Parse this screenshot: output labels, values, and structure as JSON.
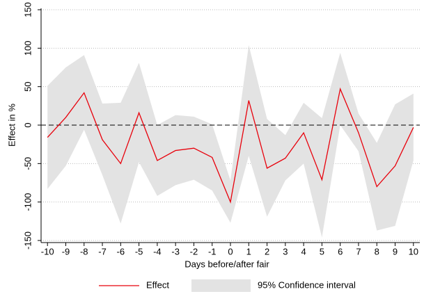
{
  "chart_data": {
    "type": "line",
    "xlabel": "Days before/after fair",
    "ylabel": "Effect in %",
    "x": [
      -10,
      -9,
      -8,
      -7,
      -6,
      -5,
      -4,
      -3,
      -2,
      -1,
      0,
      1,
      2,
      3,
      4,
      5,
      6,
      7,
      8,
      9,
      10
    ],
    "series": [
      {
        "name": "Effect",
        "color": "#e8000b",
        "values": [
          -16,
          10,
          42,
          -19,
          -50,
          16,
          -46,
          -33,
          -30,
          -42,
          -100,
          32,
          -56,
          -43,
          -10,
          -71,
          47,
          -10,
          -80,
          -53,
          -3
        ]
      }
    ],
    "band": {
      "name": "95% Confidence interval",
      "color": "#e3e3e3",
      "upper": [
        51,
        75,
        91,
        28,
        29,
        81,
        0,
        13,
        11,
        1,
        -72,
        104,
        8,
        -13,
        29,
        9,
        94,
        15,
        -23,
        27,
        41
      ],
      "lower": [
        -83,
        -53,
        -6,
        -65,
        -128,
        -48,
        -92,
        -78,
        -71,
        -85,
        -127,
        -40,
        -119,
        -72,
        -50,
        -146,
        0,
        -34,
        -137,
        -131,
        -46
      ]
    },
    "hline": 0,
    "xlim": [
      -10.35,
      10.35
    ],
    "xticks": [
      -10,
      -9,
      -8,
      -7,
      -6,
      -5,
      -4,
      -3,
      -2,
      -1,
      0,
      1,
      2,
      3,
      4,
      5,
      6,
      7,
      8,
      9,
      10
    ],
    "ylim": [
      -150,
      150
    ],
    "yticks": [
      -150,
      -100,
      -50,
      0,
      50,
      100,
      150
    ],
    "grid": true,
    "legend": "bottom"
  }
}
